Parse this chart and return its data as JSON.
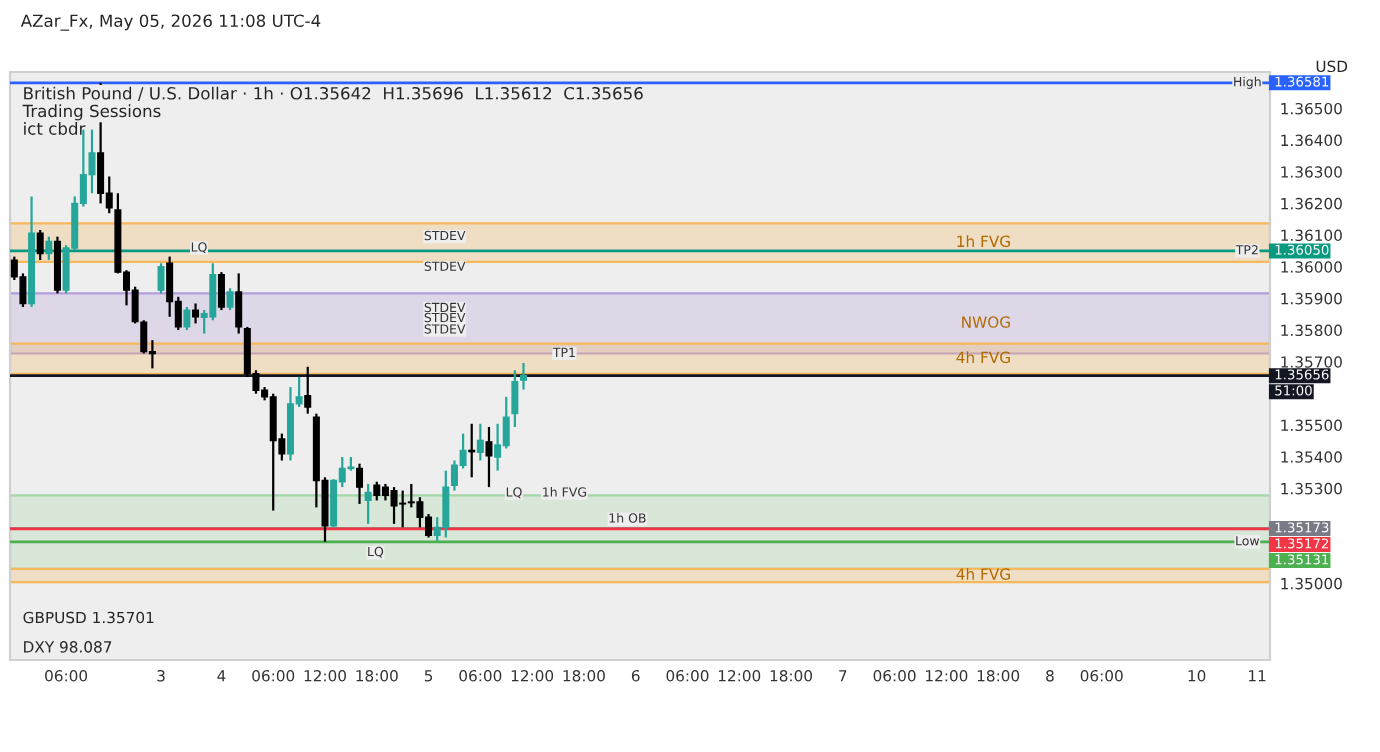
{
  "chart_data": {
    "type": "candlestick",
    "title": "British Pound / U.S. Dollar · 1h · O1.35642  H1.35696  L1.35612  C1.35656",
    "subtitle": "Trading Sessions",
    "categories": [
      null,
      null,
      null,
      null,
      null,
      null,
      "06:00",
      null,
      null,
      null,
      null,
      null,
      null,
      null,
      null,
      null,
      null,
      "3",
      null,
      null,
      null,
      null,
      null,
      null,
      "4",
      null,
      null,
      null,
      null,
      null,
      "06:00",
      null,
      null,
      null,
      null,
      null,
      "12:00",
      null,
      null,
      null,
      null,
      null,
      "18:00",
      null,
      null,
      null,
      null,
      null,
      "5",
      null,
      null,
      null,
      null,
      null,
      "06:00",
      null,
      null,
      null,
      null,
      null,
      "12:00",
      null,
      null,
      null,
      null,
      null,
      "18:00",
      null,
      null,
      null,
      null,
      null,
      "6",
      null,
      null,
      null,
      null,
      null,
      "06:00",
      null,
      null,
      null,
      null,
      null,
      "12:00",
      null,
      null,
      null,
      null,
      null,
      "18:00",
      null,
      null,
      null,
      null,
      null,
      "7",
      null,
      null,
      null,
      null,
      null,
      "06:00",
      null,
      null,
      null,
      null,
      null,
      "12:00",
      null,
      null,
      null,
      null,
      null,
      "18:00",
      null,
      null,
      null,
      null,
      null,
      "8",
      null,
      null,
      null,
      null,
      null,
      "06:00",
      null,
      null,
      null,
      null,
      null,
      null,
      null,
      null,
      null,
      null,
      "10",
      null,
      null,
      null,
      null,
      null,
      null,
      "11",
      null
    ],
    "ohlc": [
      [
        1.36021,
        1.36032,
        1.35958,
        1.35968
      ],
      [
        1.35968,
        1.35979,
        1.35873,
        1.35884
      ],
      [
        1.35884,
        1.36222,
        1.35873,
        1.36106
      ],
      [
        1.36106,
        1.36116,
        1.36021,
        1.36042
      ],
      [
        1.36042,
        1.36095,
        1.36021,
        1.3608
      ],
      [
        1.3608,
        1.36095,
        1.35916,
        1.35926
      ],
      [
        1.35926,
        1.36068,
        1.35916,
        1.36059
      ],
      [
        1.36059,
        1.36222,
        1.36053,
        1.362
      ],
      [
        1.362,
        1.36433,
        1.3619,
        1.36291
      ],
      [
        1.36291,
        1.36433,
        1.36232,
        1.36359
      ],
      [
        1.36359,
        1.36581,
        1.362,
        1.36232
      ],
      [
        1.36232,
        1.36285,
        1.36169,
        1.36186
      ],
      [
        1.36179,
        1.36232,
        1.35979,
        1.35983
      ],
      [
        1.35983,
        1.35989,
        1.35878,
        1.35926
      ],
      [
        1.35926,
        1.35937,
        1.35821,
        1.35827
      ],
      [
        1.35825,
        1.35831,
        1.35726,
        1.35732
      ],
      [
        1.35732,
        1.35768,
        1.35679,
        1.35726
      ],
      [
        1.35926,
        1.36011,
        1.35916,
        1.36
      ],
      [
        1.36011,
        1.36032,
        1.35842,
        1.3589
      ],
      [
        1.3589,
        1.35905,
        1.358,
        1.3581
      ],
      [
        1.3581,
        1.35873,
        1.358,
        1.35863
      ],
      [
        1.35863,
        1.35884,
        1.35821,
        1.35842
      ],
      [
        1.3584,
        1.35863,
        1.35789,
        1.35852
      ],
      [
        1.35842,
        1.36011,
        1.35831,
        1.35975
      ],
      [
        1.35975,
        1.35983,
        1.35863,
        1.35873
      ],
      [
        1.35873,
        1.35932,
        1.35863,
        1.3592
      ],
      [
        1.3592,
        1.35979,
        1.35789,
        1.3581
      ],
      [
        1.35804,
        1.3581,
        1.35652,
        1.35662
      ],
      [
        1.35662,
        1.35673,
        1.35599,
        1.3561
      ],
      [
        1.3561,
        1.3562,
        1.35578,
        1.35589
      ],
      [
        1.35589,
        1.35599,
        1.3523,
        1.35451
      ],
      [
        1.35456,
        1.35473,
        1.35388,
        1.35409
      ],
      [
        1.35409,
        1.3562,
        1.35388,
        1.35567
      ],
      [
        1.35567,
        1.35652,
        1.35557,
        1.35589
      ],
      [
        1.35593,
        1.35684,
        1.35536,
        1.35557
      ],
      [
        1.35525,
        1.35536,
        1.3524,
        1.35325
      ],
      [
        1.35325,
        1.35335,
        1.35131,
        1.35182
      ],
      [
        1.35182,
        1.35329,
        1.35177,
        1.35325
      ],
      [
        1.35321,
        1.35399,
        1.35304,
        1.35363
      ],
      [
        1.35363,
        1.35399,
        1.35356,
        1.35367
      ],
      [
        1.35363,
        1.35378,
        1.35251,
        1.35304
      ],
      [
        1.35262,
        1.35314,
        1.35188,
        1.35287
      ],
      [
        1.3531,
        1.35321,
        1.35262,
        1.35278
      ],
      [
        1.35304,
        1.35314,
        1.35262,
        1.35278
      ],
      [
        1.35293,
        1.35304,
        1.35188,
        1.35245
      ],
      [
        1.35253,
        1.35293,
        1.35177,
        1.35251
      ],
      [
        1.35257,
        1.35314,
        1.3524,
        1.35255
      ],
      [
        1.35257,
        1.35272,
        1.35177,
        1.35209
      ],
      [
        1.35209,
        1.35219,
        1.35145,
        1.35152
      ],
      [
        1.35152,
        1.35209,
        1.35135,
        1.35177
      ],
      [
        1.35177,
        1.35356,
        1.35145,
        1.35304
      ],
      [
        1.3531,
        1.35388,
        1.35293,
        1.35373
      ],
      [
        1.35373,
        1.35473,
        1.35363,
        1.3542
      ],
      [
        1.3542,
        1.35504,
        1.35335,
        1.35416
      ],
      [
        1.35414,
        1.35504,
        1.35388,
        1.35451
      ],
      [
        1.35447,
        1.35494,
        1.35304,
        1.35403
      ],
      [
        1.35399,
        1.35504,
        1.35356,
        1.35437
      ],
      [
        1.35435,
        1.35589,
        1.35426,
        1.35525
      ],
      [
        1.35536,
        1.35673,
        1.35494,
        1.35637
      ],
      [
        1.35642,
        1.35696,
        1.35612,
        1.35656
      ],
      null,
      null,
      null,
      null,
      null,
      null,
      null,
      null,
      null,
      null,
      null,
      null,
      null,
      null,
      null,
      null,
      null,
      null,
      null,
      null,
      null,
      null,
      null,
      null,
      null,
      null,
      null,
      null,
      null,
      null,
      null,
      null,
      null,
      null,
      null,
      null,
      null,
      null,
      null,
      null,
      null,
      null,
      null,
      null,
      null,
      null,
      null,
      null,
      null,
      null,
      null,
      null,
      null,
      null,
      null,
      null,
      null,
      null,
      null,
      null,
      null,
      null,
      null,
      null,
      null,
      null,
      null,
      null,
      null,
      null,
      null,
      null,
      null,
      null,
      null,
      null,
      null,
      null,
      null,
      null,
      null,
      null,
      null,
      null,
      null,
      null
    ],
    "colors": [
      "#000000",
      "#000000",
      "#26a69a",
      "#000000",
      "#26a69a",
      "#000000",
      "#26a69a",
      "#26a69a",
      "#26a69a",
      "#26a69a",
      "#000000",
      "#000000",
      "#000000",
      "#000000",
      "#000000",
      "#000000",
      "#000000",
      "#26a69a",
      "#000000",
      "#000000",
      "#26a69a",
      "#000000",
      "#26a69a",
      "#26a69a",
      "#000000",
      "#26a69a",
      "#000000",
      "#000000",
      "#000000",
      "#000000",
      "#000000",
      "#000000",
      "#26a69a",
      "#26a69a",
      "#000000",
      "#000000",
      "#000000",
      "#26a69a",
      "#26a69a",
      "#26a69a",
      "#000000",
      "#26a69a",
      "#000000",
      "#000000",
      "#000000",
      "#000000",
      "#000000",
      "#000000",
      "#000000",
      "#26a69a",
      "#26a69a",
      "#26a69a",
      "#26a69a",
      "#000000",
      "#26a69a",
      "#000000",
      "#26a69a",
      "#26a69a",
      "#26a69a",
      "#26a69a",
      null,
      null,
      null,
      null,
      null,
      null,
      null,
      null,
      null,
      null,
      null,
      null,
      null,
      null,
      null,
      null,
      null,
      null,
      null,
      null,
      null,
      null,
      null,
      null,
      null,
      null,
      null,
      null,
      null,
      null,
      null,
      null,
      null,
      null,
      null,
      null,
      null,
      null,
      null,
      null,
      null,
      null,
      null,
      null,
      null,
      null,
      null,
      null,
      null,
      null,
      null,
      null,
      null,
      null,
      null,
      null,
      null,
      null,
      null,
      null,
      null,
      null,
      null,
      null,
      null,
      null,
      null,
      null,
      null,
      null,
      null,
      null,
      null,
      null,
      null,
      null,
      null,
      null,
      null,
      null,
      null,
      null,
      null,
      null,
      null,
      null
    ],
    "ylim": [
      1.34758,
      1.36615
    ],
    "yticks": [
      {
        "value": 1.35,
        "label": "1.35000"
      },
      {
        "value": 1.353,
        "label": "1.35300"
      },
      {
        "value": 1.354,
        "label": "1.35400"
      },
      {
        "value": 1.355,
        "label": "1.35500"
      },
      {
        "value": 1.357,
        "label": "1.35700"
      },
      {
        "value": 1.358,
        "label": "1.35800"
      },
      {
        "value": 1.359,
        "label": "1.35900"
      },
      {
        "value": 1.36,
        "label": "1.36000"
      },
      {
        "value": 1.361,
        "label": "1.36100"
      },
      {
        "value": 1.362,
        "label": "1.36200"
      },
      {
        "value": 1.363,
        "label": "1.36300"
      },
      {
        "value": 1.364,
        "label": "1.36400"
      },
      {
        "value": 1.365,
        "label": "1.36500"
      }
    ],
    "grid": false,
    "ref_lines": [
      {
        "axis": "y",
        "value": 1.36581,
        "label": "1.36581",
        "color": "#2962ff",
        "line_style": "solid"
      },
      {
        "axis": "y",
        "value": 1.3605,
        "label": "1.36050",
        "color": "#089981",
        "line_style": "solid"
      },
      {
        "axis": "y",
        "value": 1.35656,
        "label": "1.35656",
        "color": "#131722",
        "line_style": "solid"
      },
      {
        "axis": "y",
        "value": 1.35173,
        "label": "1.35173",
        "color": "#787b86",
        "line_style": "solid"
      },
      {
        "axis": "y",
        "value": 1.35172,
        "label": "1.35172",
        "color": "#f23645",
        "line_style": "solid"
      },
      {
        "axis": "y",
        "value": 1.35131,
        "label": "1.35131",
        "color": "#4caf50",
        "line_style": "solid"
      }
    ],
    "bands": [
      {
        "axis": "y",
        "from": 1.36015,
        "to": 1.36137,
        "label": "1h FVG",
        "color": "#f5b85a"
      },
      {
        "axis": "y",
        "from": 1.35726,
        "to": 1.35916,
        "label": "NWOG",
        "color": "#b39ddb"
      },
      {
        "axis": "y",
        "from": 1.35662,
        "to": 1.35757,
        "label": "4h FVG",
        "color": "#f5b85a"
      },
      {
        "axis": "y",
        "from": 1.35046,
        "to": 1.35278,
        "label": null,
        "color": "#a5d6a7"
      },
      {
        "axis": "y",
        "from": 1.35004,
        "to": 1.35046,
        "label": "4h FVG",
        "color": "#f5b85a"
      }
    ],
    "annotations": [
      "AZar_Fx, May 05, 2026 11:08 UTC-4",
      "ict cbdr",
      "GBPUSD 1.35701",
      "DXY 98.087",
      "USD",
      "51:00",
      {
        "text": "STDEV",
        "y": 1.36095
      },
      {
        "text": "STDEV",
        "y": 1.35998
      },
      {
        "text": "STDEV",
        "y": 1.35868
      },
      {
        "text": "STDEV",
        "y": 1.35836
      },
      {
        "text": "STDEV",
        "y": 1.358
      },
      {
        "text": "LQ",
        "y": 1.36059
      },
      {
        "text": "LQ",
        "y": 1.35097
      },
      {
        "text": "LQ",
        "y": 1.35285
      },
      {
        "text": "TP1",
        "y": 1.35726
      },
      {
        "text": "1h FVG",
        "y": 1.35285
      },
      {
        "text": "1h OB",
        "y": 1.35203
      },
      {
        "text": "High",
        "y": 1.36581
      },
      {
        "text": "TP2",
        "y": 1.3605
      },
      {
        "text": "Low",
        "y": 1.35131
      }
    ]
  }
}
